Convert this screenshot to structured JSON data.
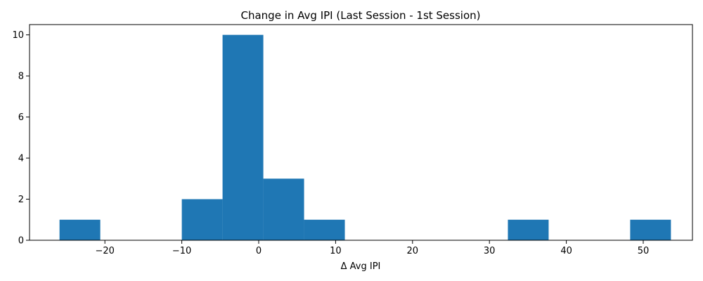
{
  "chart_data": {
    "type": "bar",
    "title": "Change in Avg IPI (Last Session - 1st Session)",
    "xlabel": "Δ Avg IPI",
    "ylabel": "",
    "bin_edges": [
      -25.9,
      -20.6,
      -15.3,
      -10.0,
      -4.7,
      0.6,
      5.9,
      11.2,
      16.5,
      21.8,
      27.1,
      32.4,
      37.7,
      43.0,
      48.3,
      53.6
    ],
    "counts": [
      1,
      0,
      0,
      2,
      10,
      3,
      1,
      0,
      0,
      0,
      0,
      1,
      0,
      0,
      1
    ],
    "xlim": [
      -29.8,
      56.4
    ],
    "ylim": [
      0,
      10.5
    ],
    "xticks": [
      -20,
      -10,
      0,
      10,
      20,
      30,
      40,
      50
    ],
    "xtick_labels": [
      "−20",
      "−10",
      "0",
      "10",
      "20",
      "30",
      "40",
      "50"
    ],
    "yticks": [
      0,
      2,
      4,
      6,
      8,
      10
    ],
    "ytick_labels": [
      "0",
      "2",
      "4",
      "6",
      "8",
      "10"
    ],
    "bar_color": "#1f77b4",
    "grid": false,
    "legend": "none"
  }
}
